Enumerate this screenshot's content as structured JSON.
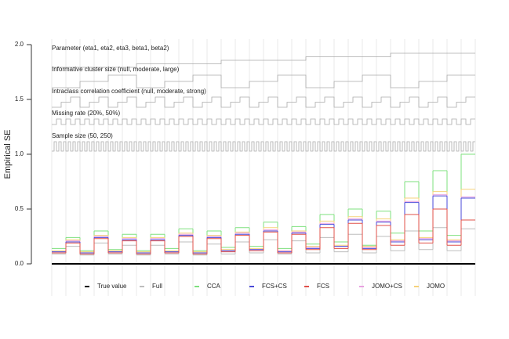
{
  "chart_data": {
    "type": "nested-loop",
    "ylabel": "Empirical SE",
    "ylim": [
      0,
      2.0
    ],
    "yticks": [
      {
        "value": 0,
        "label": "0.0"
      },
      {
        "value": 0.5,
        "label": "0.5"
      },
      {
        "value": 1.0,
        "label": "1.0"
      },
      {
        "value": 1.5,
        "label": "1.5"
      },
      {
        "value": 2.0,
        "label": "2.0"
      }
    ],
    "factors": [
      {
        "label": "Parameter (eta1, eta2, eta3, beta1, beta2)",
        "levels": 5
      },
      {
        "label": "Informative cluster size (null, moderate, large)",
        "levels": 3
      },
      {
        "label": "Intraclass correlation coefficient (null, moderate, strong)",
        "levels": 3
      },
      {
        "label": "Missing rate (20%, 50%)",
        "levels": 2
      },
      {
        "label": "Sample size (50, 250)",
        "levels": 2
      }
    ],
    "series": [
      {
        "name": "True value",
        "color": "#000000",
        "values": [
          0,
          0,
          0,
          0,
          0,
          0,
          0,
          0,
          0,
          0,
          0,
          0,
          0,
          0,
          0,
          0,
          0,
          0,
          0,
          0,
          0,
          0,
          0,
          0,
          0,
          0,
          0,
          0,
          0,
          0
        ]
      },
      {
        "name": "Full",
        "color": "#bdbdbd",
        "values": [
          0.09,
          0.16,
          0.08,
          0.19,
          0.09,
          0.17,
          0.08,
          0.17,
          0.09,
          0.2,
          0.08,
          0.18,
          0.09,
          0.2,
          0.1,
          0.22,
          0.09,
          0.21,
          0.1,
          0.24,
          0.11,
          0.27,
          0.1,
          0.25,
          0.12,
          0.3,
          0.13,
          0.33,
          0.12,
          0.32
        ]
      },
      {
        "name": "CCA",
        "color": "#7ee07e",
        "values": [
          0.14,
          0.24,
          0.12,
          0.3,
          0.13,
          0.27,
          0.12,
          0.27,
          0.14,
          0.32,
          0.12,
          0.3,
          0.15,
          0.33,
          0.16,
          0.38,
          0.14,
          0.34,
          0.18,
          0.45,
          0.2,
          0.5,
          0.17,
          0.48,
          0.28,
          0.75,
          0.3,
          0.85,
          0.26,
          1.0
        ]
      },
      {
        "name": "FCS+CS",
        "color": "#4a4ad8",
        "values": [
          0.11,
          0.2,
          0.1,
          0.24,
          0.11,
          0.22,
          0.1,
          0.22,
          0.11,
          0.26,
          0.1,
          0.24,
          0.12,
          0.27,
          0.13,
          0.3,
          0.11,
          0.28,
          0.14,
          0.36,
          0.16,
          0.4,
          0.14,
          0.38,
          0.2,
          0.56,
          0.22,
          0.62,
          0.2,
          0.6
        ]
      },
      {
        "name": "FCS",
        "color": "#e0504a",
        "values": [
          0.1,
          0.19,
          0.09,
          0.23,
          0.1,
          0.21,
          0.09,
          0.21,
          0.1,
          0.25,
          0.09,
          0.23,
          0.11,
          0.26,
          0.12,
          0.29,
          0.1,
          0.27,
          0.13,
          0.33,
          0.14,
          0.37,
          0.13,
          0.35,
          0.17,
          0.45,
          0.19,
          0.5,
          0.17,
          0.4
        ]
      },
      {
        "name": "JOMO+CS",
        "color": "#e8a0e0",
        "values": [
          0.11,
          0.21,
          0.1,
          0.25,
          0.11,
          0.23,
          0.1,
          0.23,
          0.11,
          0.27,
          0.1,
          0.25,
          0.12,
          0.28,
          0.13,
          0.31,
          0.12,
          0.29,
          0.15,
          0.37,
          0.16,
          0.41,
          0.15,
          0.39,
          0.21,
          0.57,
          0.23,
          0.63,
          0.21,
          0.61
        ]
      },
      {
        "name": "JOMO",
        "color": "#f5d27a",
        "values": [
          0.12,
          0.22,
          0.11,
          0.26,
          0.12,
          0.24,
          0.11,
          0.24,
          0.12,
          0.28,
          0.11,
          0.26,
          0.13,
          0.29,
          0.14,
          0.33,
          0.12,
          0.3,
          0.16,
          0.39,
          0.17,
          0.43,
          0.16,
          0.41,
          0.22,
          0.6,
          0.24,
          0.66,
          0.22,
          0.68
        ]
      }
    ]
  }
}
